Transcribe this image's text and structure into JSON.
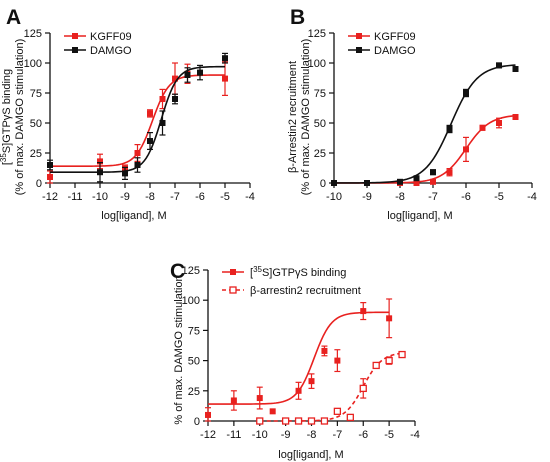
{
  "colors": {
    "red": "#e8211f",
    "black": "#111111"
  },
  "chart_data": [
    {
      "panel": "A",
      "type": "scatter",
      "xlabel": "log[ligand], M",
      "ylabel_lines": [
        "[35S]GTPγS binding",
        "(% of max. DAMGO stimulation)"
      ],
      "xlim": [
        -12,
        -4
      ],
      "ylim": [
        0,
        125
      ],
      "xticks": [
        -12,
        -11,
        -10,
        -9,
        -8,
        -7,
        -6,
        -5,
        -4
      ],
      "yticks": [
        0,
        25,
        50,
        75,
        100,
        125
      ],
      "grid": false,
      "legend": "top-left",
      "series": [
        {
          "name": "KGFF09",
          "color": "#e8211f",
          "marker": "filled-square",
          "x": [
            -12,
            -10,
            -9,
            -8.5,
            -8,
            -7.5,
            -7,
            -6.5,
            -5
          ],
          "y": [
            5,
            18,
            12,
            25,
            58,
            70,
            87,
            91,
            87
          ],
          "err": [
            5,
            6,
            3,
            7,
            3,
            8,
            13,
            8,
            14
          ],
          "fit": {
            "bottom": 14,
            "top": 90,
            "logec50": -7.9,
            "hill": 1.3
          }
        },
        {
          "name": "DAMGO",
          "color": "#111111",
          "marker": "filled-square",
          "x": [
            -12,
            -10,
            -9,
            -8.5,
            -8,
            -7.5,
            -7,
            -6.5,
            -6,
            -5
          ],
          "y": [
            15,
            9,
            8,
            15,
            35,
            50,
            70,
            90,
            92,
            104
          ],
          "err": [
            4,
            8,
            5,
            6,
            7,
            10,
            4,
            6,
            6,
            4
          ],
          "fit": {
            "bottom": 9,
            "top": 97,
            "logec50": -7.55,
            "hill": 1.35
          }
        }
      ]
    },
    {
      "panel": "B",
      "type": "scatter",
      "xlabel": "log[ligand], M",
      "ylabel_lines": [
        "β-Arrestin2 recruitment",
        "(% of max. DAMGO stimulation)"
      ],
      "xlim": [
        -10,
        -4
      ],
      "ylim": [
        0,
        125
      ],
      "xticks": [
        -10,
        -9,
        -8,
        -7,
        -6,
        -5,
        -4
      ],
      "yticks": [
        0,
        25,
        50,
        75,
        100,
        125
      ],
      "grid": false,
      "legend": "top-left",
      "series": [
        {
          "name": "KGFF09",
          "color": "#e8211f",
          "marker": "filled-square",
          "x": [
            -10,
            -9,
            -8,
            -7.5,
            -7,
            -6.5,
            -6,
            -5.5,
            -5,
            -4.5
          ],
          "y": [
            0,
            0,
            0,
            0,
            1,
            9,
            28,
            46,
            50,
            55
          ],
          "err": [
            0,
            0,
            0,
            0,
            1,
            3,
            10,
            2,
            4,
            2
          ],
          "fit": {
            "bottom": 0,
            "top": 57,
            "logec50": -6.0,
            "hill": 1.2
          }
        },
        {
          "name": "DAMGO",
          "color": "#111111",
          "marker": "filled-square",
          "x": [
            -10,
            -9,
            -8,
            -7.5,
            -7,
            -6.5,
            -6,
            -5,
            -4.5
          ],
          "y": [
            0,
            0,
            1,
            4,
            9,
            45,
            75,
            98,
            95
          ],
          "err": [
            0,
            0,
            0,
            1,
            2,
            3,
            3,
            2,
            2
          ],
          "fit": {
            "bottom": 0,
            "top": 99,
            "logec50": -6.45,
            "hill": 1.1
          }
        }
      ]
    },
    {
      "panel": "C",
      "type": "scatter",
      "xlabel": "log[ligand], M",
      "ylabel_lines": [
        "% of max. DAMGO stimulation"
      ],
      "xlim": [
        -12,
        -4
      ],
      "ylim": [
        0,
        125
      ],
      "xticks": [
        -12,
        -11,
        -10,
        -9,
        -8,
        -7,
        -6,
        -5,
        -4
      ],
      "yticks": [
        0,
        25,
        50,
        75,
        100,
        125
      ],
      "grid": false,
      "legend": "top-left",
      "series": [
        {
          "name": "[35S]GTPγS binding",
          "color": "#e8211f",
          "marker": "filled-square",
          "line": "solid",
          "x": [
            -12,
            -11,
            -10,
            -9.5,
            -8.5,
            -8,
            -7.5,
            -7,
            -6,
            -5
          ],
          "y": [
            5,
            17,
            19,
            8,
            25,
            33,
            58,
            50,
            91,
            85
          ],
          "err": [
            6,
            8,
            9,
            0,
            7,
            6,
            4,
            9,
            7,
            16
          ],
          "fit": {
            "bottom": 14,
            "top": 90,
            "logec50": -7.9,
            "hill": 1.3
          }
        },
        {
          "name": "β-arrestin2 recruitment",
          "color": "#e8211f",
          "marker": "open-square",
          "line": "dashed",
          "x": [
            -10,
            -9,
            -8.5,
            -8,
            -7.5,
            -7,
            -6.5,
            -6,
            -5.5,
            -5,
            -4.5
          ],
          "y": [
            0,
            0,
            0,
            0,
            0,
            8,
            3,
            27,
            46,
            50,
            55
          ],
          "err": [
            0,
            0,
            0,
            0,
            0,
            2,
            0,
            8,
            2,
            3,
            2
          ],
          "fit": {
            "bottom": 0,
            "top": 57,
            "logec50": -6.0,
            "hill": 1.2
          }
        }
      ]
    }
  ],
  "panels": [
    {
      "letter": "A",
      "legend": [
        {
          "label": "KGFF09"
        },
        {
          "label": "DAMGO"
        }
      ]
    },
    {
      "letter": "B",
      "legend": [
        {
          "label": "KGFF09"
        },
        {
          "label": "DAMGO"
        }
      ]
    },
    {
      "letter": "C",
      "legend": [
        {
          "label": "[35S]GTPγS binding"
        },
        {
          "label": "β-arrestin2 recruitment"
        }
      ]
    }
  ]
}
